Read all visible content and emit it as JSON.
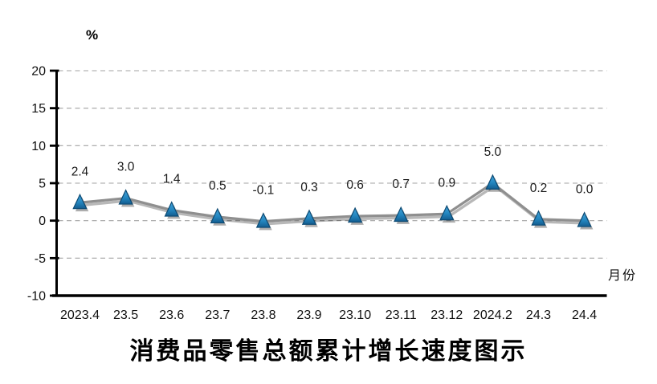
{
  "chart_data": {
    "type": "line",
    "title": "消费品零售总额累计增长速度图示",
    "unit_label": "%",
    "x_axis_label": "月份",
    "categories": [
      "2023.4",
      "23.5",
      "23.6",
      "23.7",
      "23.8",
      "23.9",
      "23.10",
      "23.11",
      "23.12",
      "2024.2",
      "24.3",
      "24.4"
    ],
    "series": [
      {
        "values": [
          2.4,
          3.0,
          1.4,
          0.5,
          -0.1,
          0.3,
          0.6,
          0.7,
          0.9,
          5.0,
          0.2,
          0.0
        ],
        "point_labels": [
          "2.4",
          "3.0",
          "1.4",
          "0.5",
          "-0.1",
          "0.3",
          "0.6",
          "0.7",
          "0.9",
          "5.0",
          "0.2",
          "0.0"
        ]
      }
    ],
    "ylim": [
      -10,
      20
    ],
    "yticks": [
      20,
      15,
      10,
      5,
      0,
      -5,
      -10
    ],
    "grid": "dashed-horizontal",
    "legend": "none",
    "colors": {
      "line": "#8f8f8f",
      "line_shadow": "rgba(0,0,0,0.28)",
      "marker_fill_top": "#44a3d9",
      "marker_fill_bottom": "#135d90",
      "marker_stroke": "#0d4a73",
      "marker_shadow": "rgba(0,0,0,0.32)",
      "axis": "#000000",
      "gridline": "#a3a3a3",
      "tick_label_text": "#111111",
      "data_label_text": "#1a1a1a"
    }
  }
}
